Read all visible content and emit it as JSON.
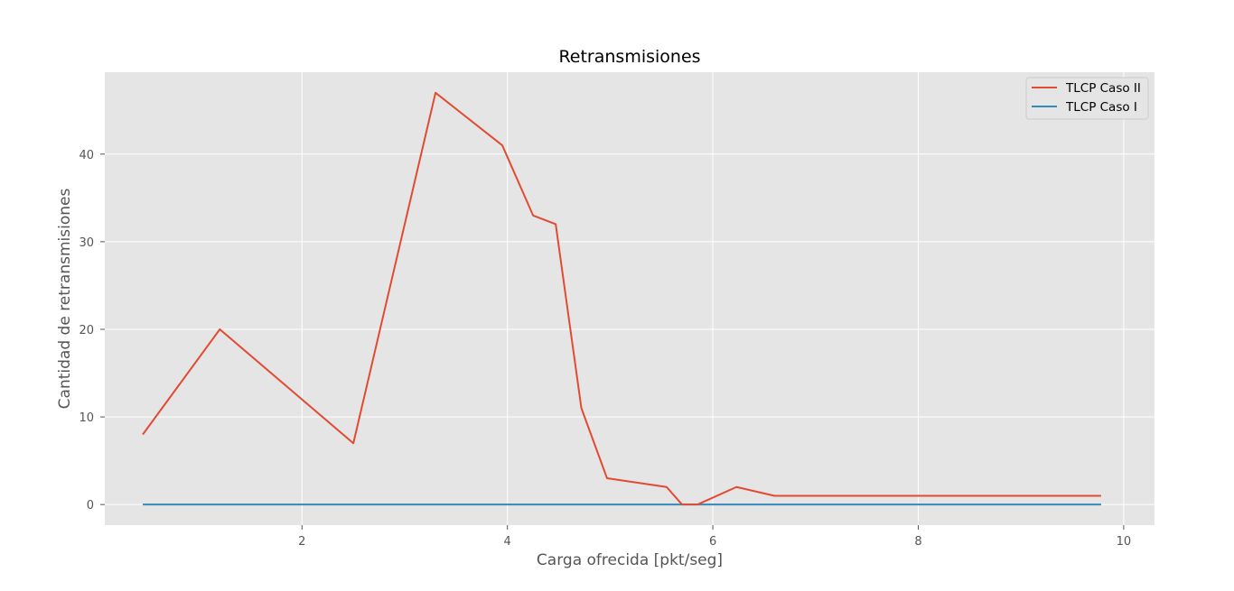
{
  "chart_data": {
    "type": "line",
    "title": "Retransmisiones",
    "xlabel": "Carga ofrecida [pkt/seg]",
    "ylabel": "Cantidad de retransmisiones",
    "xlim": [
      0.08,
      10.3
    ],
    "ylim": [
      -2.35,
      49.35
    ],
    "xticks": [
      2,
      4,
      6,
      8,
      10
    ],
    "yticks": [
      0,
      10,
      20,
      30,
      40
    ],
    "grid": true,
    "legend_position": "top-right",
    "background": "#e5e5e5",
    "series": [
      {
        "name": "TLCP Caso II",
        "color": "#e24a33",
        "points": [
          [
            0.45,
            8
          ],
          [
            1.2,
            20
          ],
          [
            2.5,
            7
          ],
          [
            3.3,
            47
          ],
          [
            3.95,
            41
          ],
          [
            4.25,
            33
          ],
          [
            4.47,
            32
          ],
          [
            4.72,
            11
          ],
          [
            4.97,
            3
          ],
          [
            5.55,
            2
          ],
          [
            5.7,
            0
          ],
          [
            5.85,
            0
          ],
          [
            6.23,
            2
          ],
          [
            6.6,
            1
          ],
          [
            9.78,
            1
          ]
        ]
      },
      {
        "name": "TLCP Caso I",
        "color": "#348abd",
        "points": [
          [
            0.45,
            0
          ],
          [
            9.78,
            0
          ]
        ]
      }
    ]
  }
}
